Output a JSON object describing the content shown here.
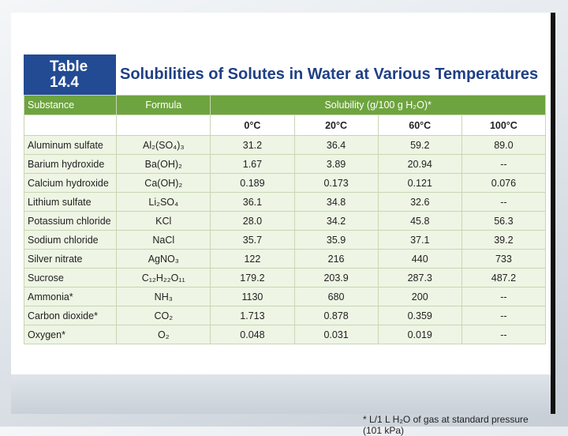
{
  "table": {
    "label_line1": "Table",
    "label_line2": "14.4",
    "title": "Solubilities of Solutes in Water at Various Temperatures",
    "headers": {
      "substance": "Substance",
      "formula": "Formula",
      "solubility": "Solubility (g/100 g H₂O)*"
    },
    "temperatures": [
      "0°C",
      "20°C",
      "60°C",
      "100°C"
    ],
    "rows": [
      {
        "substance": "Aluminum sulfate",
        "formula": "Al₂(SO₄)₃",
        "v0": "31.2",
        "v20": "36.4",
        "v60": "59.2",
        "v100": "89.0"
      },
      {
        "substance": "Barium hydroxide",
        "formula": "Ba(OH)₂",
        "v0": "1.67",
        "v20": "3.89",
        "v60": "20.94",
        "v100": "--"
      },
      {
        "substance": "Calcium hydroxide",
        "formula": "Ca(OH)₂",
        "v0": "0.189",
        "v20": "0.173",
        "v60": "0.121",
        "v100": "0.076"
      },
      {
        "substance": "Lithium sulfate",
        "formula": "Li₂SO₄",
        "v0": "36.1",
        "v20": "34.8",
        "v60": "32.6",
        "v100": "--"
      },
      {
        "substance": "Potassium chloride",
        "formula": "KCl",
        "v0": "28.0",
        "v20": "34.2",
        "v60": "45.8",
        "v100": "56.3"
      },
      {
        "substance": "Sodium chloride",
        "formula": "NaCl",
        "v0": "35.7",
        "v20": "35.9",
        "v60": "37.1",
        "v100": "39.2"
      },
      {
        "substance": "Silver nitrate",
        "formula": "AgNO₃",
        "v0": "122",
        "v20": "216",
        "v60": "440",
        "v100": "733"
      },
      {
        "substance": "Sucrose",
        "formula": "C₁₂H₂₂O₁₁",
        "v0": "179.2",
        "v20": "203.9",
        "v60": "287.3",
        "v100": "487.2"
      },
      {
        "substance": "Ammonia*",
        "formula": "NH₃",
        "v0": "1130",
        "v20": "680",
        "v60": "200",
        "v100": "--"
      },
      {
        "substance": "Carbon dioxide*",
        "formula": "CO₂",
        "v0": "1.713",
        "v20": "0.878",
        "v60": "0.359",
        "v100": "--"
      },
      {
        "substance": "Oxygen*",
        "formula": "O₂",
        "v0": "0.048",
        "v20": "0.031",
        "v60": "0.019",
        "v100": "--"
      }
    ],
    "footnote": "* L/1 L H₂O of gas at standard pressure (101 kPa)"
  }
}
